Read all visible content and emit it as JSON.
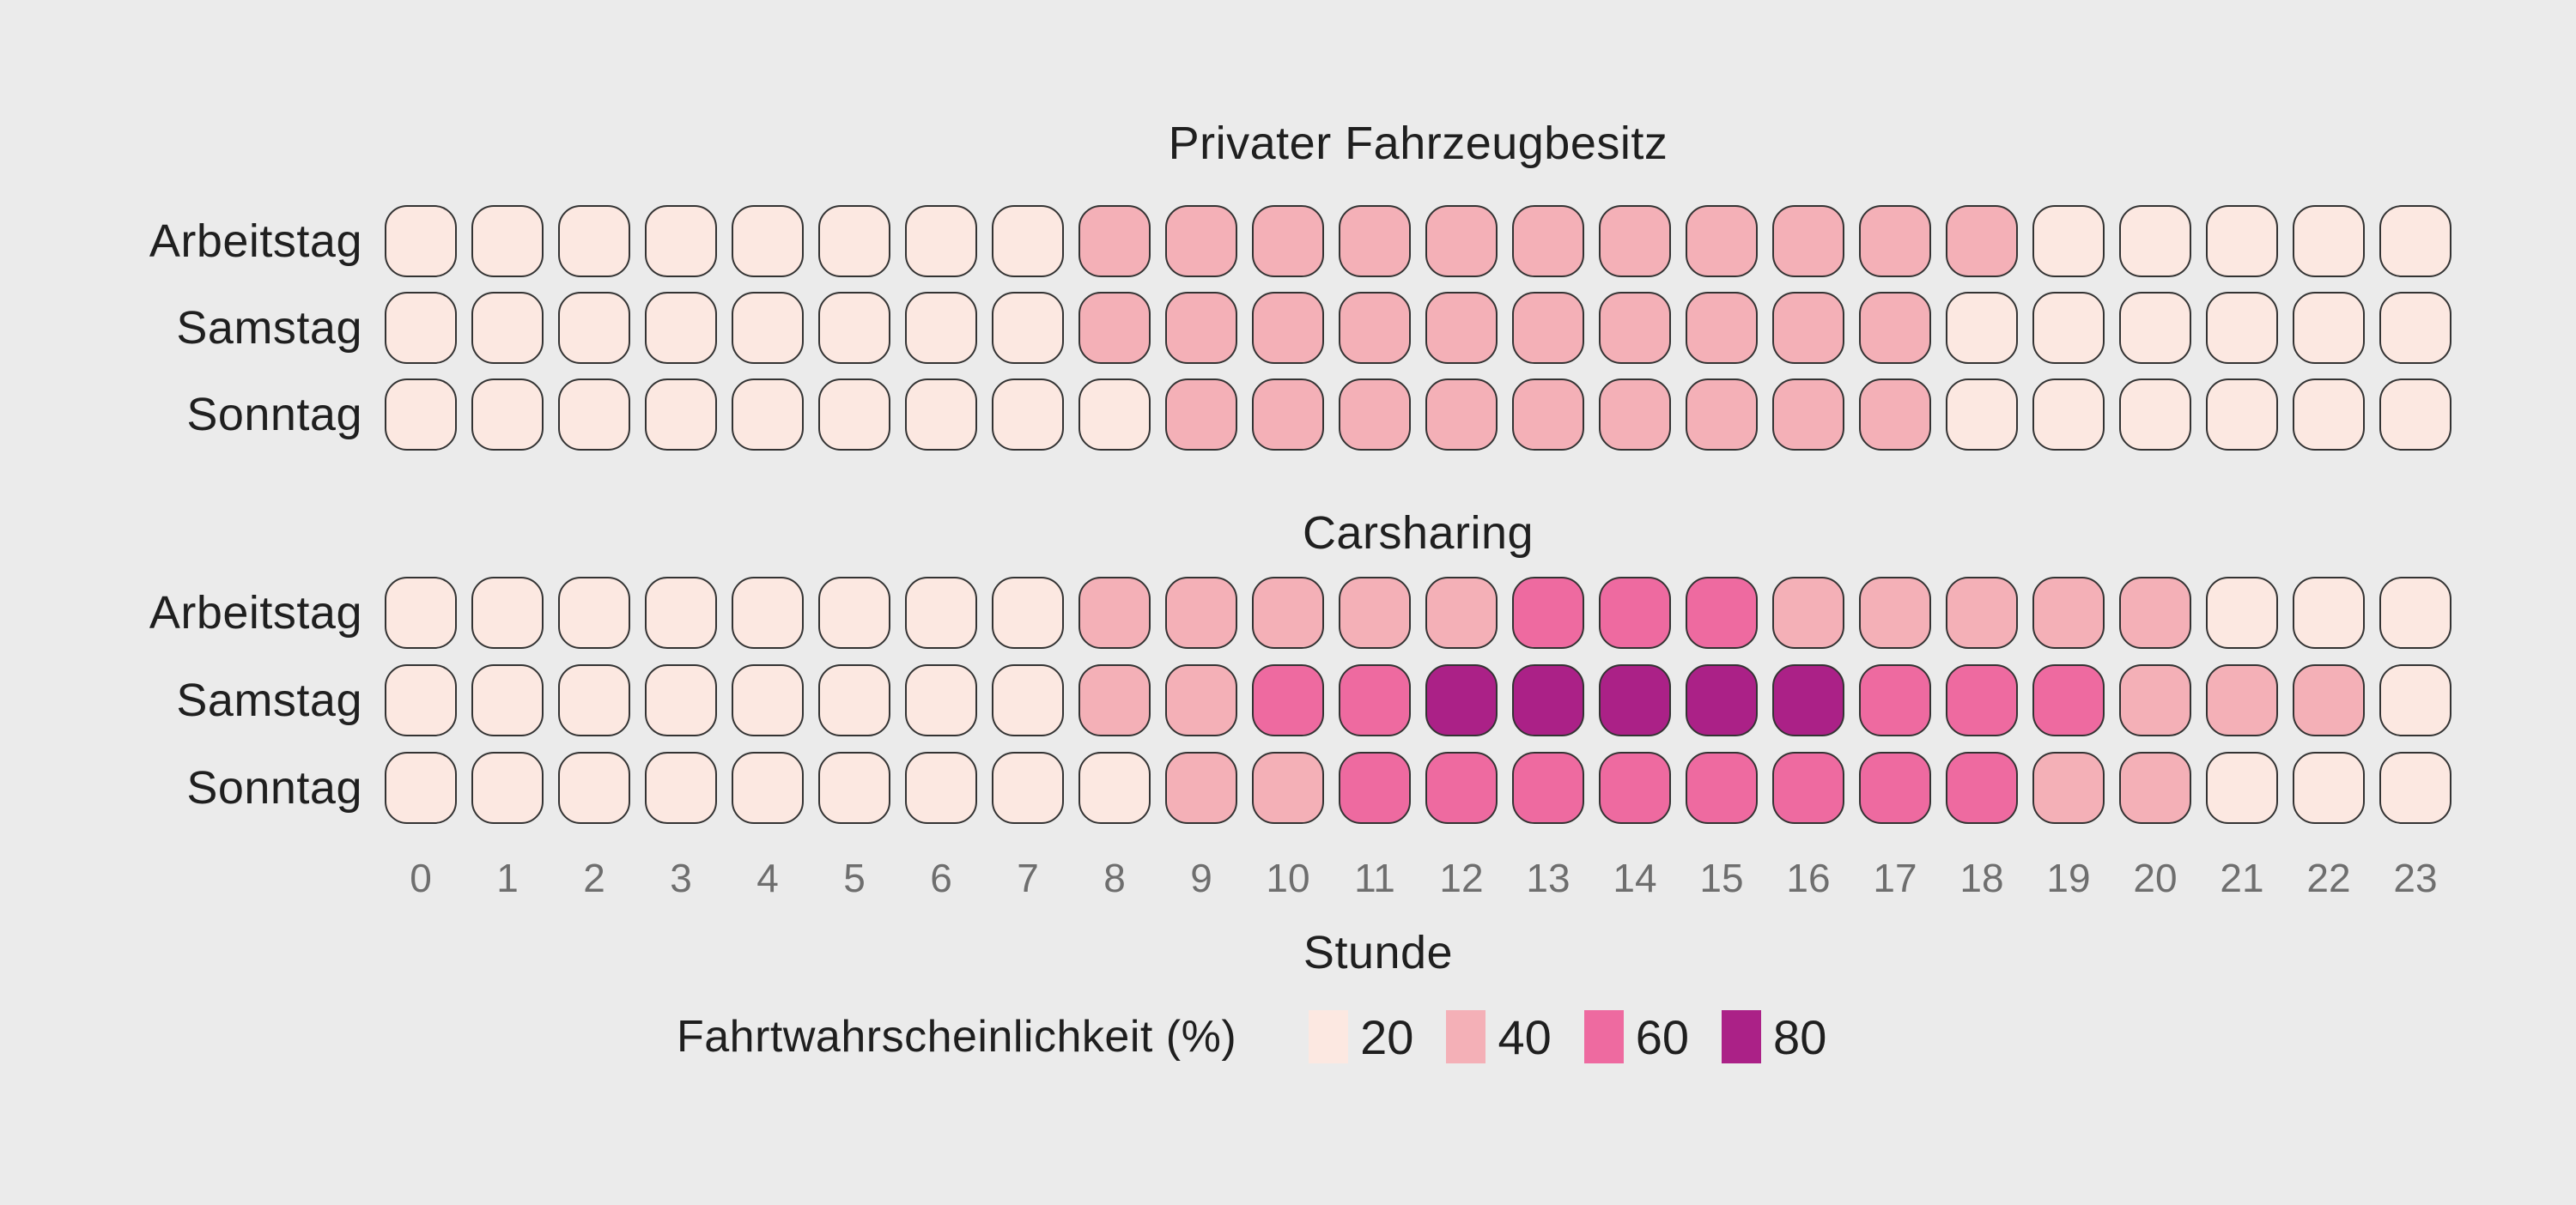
{
  "page": {
    "background_color": "#ebebeb"
  },
  "chart_data": {
    "type": "heatmap",
    "x_axis_label": "Stunde",
    "x_ticks": [
      "0",
      "1",
      "2",
      "3",
      "4",
      "5",
      "6",
      "7",
      "8",
      "9",
      "10",
      "11",
      "12",
      "13",
      "14",
      "15",
      "16",
      "17",
      "18",
      "19",
      "20",
      "21",
      "22",
      "23"
    ],
    "legend_title": "Fahrtwahrscheinlichkeit (%)",
    "legend_position": "bottom",
    "legend": [
      {
        "label": "20",
        "color": "#fce8e1"
      },
      {
        "label": "40",
        "color": "#f4b0b7"
      },
      {
        "label": "60",
        "color": "#ee6aa0"
      },
      {
        "label": "80",
        "color": "#ab2187"
      }
    ],
    "color_map": {
      "20": "#fce8e1",
      "40": "#f4b0b7",
      "60": "#ee6aa0",
      "80": "#ab2187"
    },
    "cell_border_color": "#333333",
    "panels": [
      {
        "title": "Privater Fahrzeugbesitz",
        "rows": [
          {
            "label": "Arbeitstag",
            "values": [
              20,
              20,
              20,
              20,
              20,
              20,
              20,
              20,
              40,
              40,
              40,
              40,
              40,
              40,
              40,
              40,
              40,
              40,
              40,
              20,
              20,
              20,
              20,
              20
            ]
          },
          {
            "label": "Samstag",
            "values": [
              20,
              20,
              20,
              20,
              20,
              20,
              20,
              20,
              40,
              40,
              40,
              40,
              40,
              40,
              40,
              40,
              40,
              40,
              20,
              20,
              20,
              20,
              20,
              20
            ]
          },
          {
            "label": "Sonntag",
            "values": [
              20,
              20,
              20,
              20,
              20,
              20,
              20,
              20,
              20,
              40,
              40,
              40,
              40,
              40,
              40,
              40,
              40,
              40,
              20,
              20,
              20,
              20,
              20,
              20
            ]
          }
        ]
      },
      {
        "title": "Carsharing",
        "rows": [
          {
            "label": "Arbeitstag",
            "values": [
              20,
              20,
              20,
              20,
              20,
              20,
              20,
              20,
              40,
              40,
              40,
              40,
              40,
              60,
              60,
              60,
              40,
              40,
              40,
              40,
              40,
              20,
              20,
              20
            ]
          },
          {
            "label": "Samstag",
            "values": [
              20,
              20,
              20,
              20,
              20,
              20,
              20,
              20,
              40,
              40,
              60,
              60,
              80,
              80,
              80,
              80,
              80,
              60,
              60,
              60,
              40,
              40,
              40,
              20
            ]
          },
          {
            "label": "Sonntag",
            "values": [
              20,
              20,
              20,
              20,
              20,
              20,
              20,
              20,
              20,
              40,
              40,
              60,
              60,
              60,
              60,
              60,
              60,
              60,
              60,
              40,
              40,
              20,
              20,
              20
            ]
          }
        ]
      }
    ]
  }
}
